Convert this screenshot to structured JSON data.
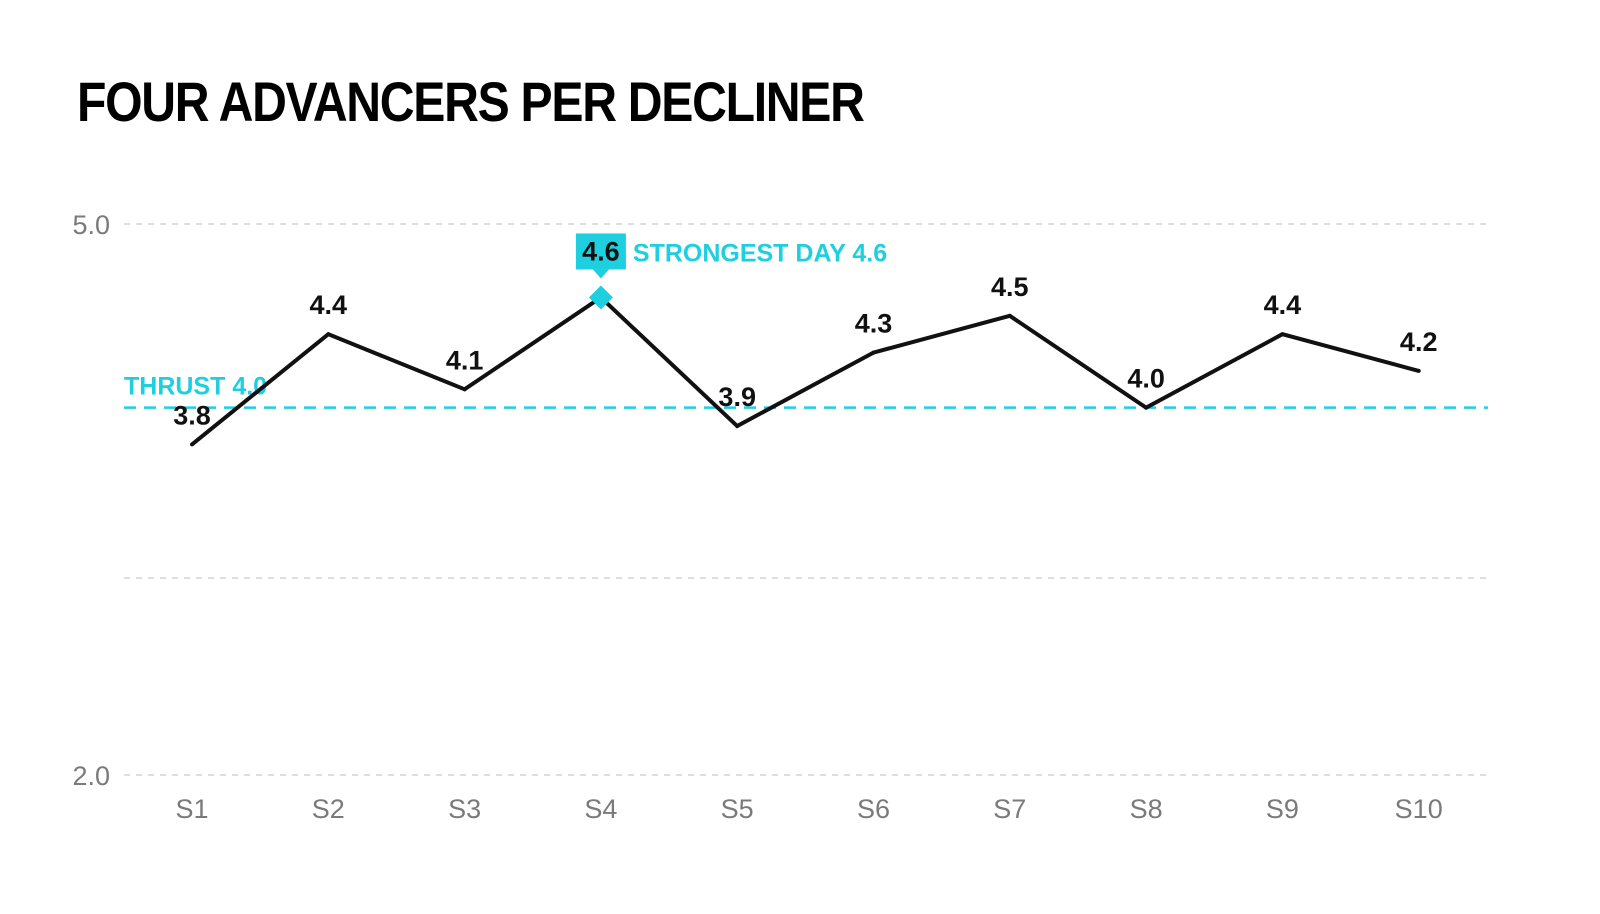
{
  "title": "FOUR ADVANCERS PER DECLINER",
  "colors": {
    "line": "#111111",
    "accent": "#1ecfdf",
    "grid": "#d4d4d4",
    "tick_text": "#7a7a7a"
  },
  "chart_data": {
    "type": "line",
    "title": "FOUR ADVANCERS PER DECLINER",
    "xlabel": "",
    "ylabel": "",
    "ylim": [
      2.0,
      5.0
    ],
    "y_ticks": [
      "5.0",
      "2.0"
    ],
    "grid": true,
    "categories": [
      "S1",
      "S2",
      "S3",
      "S4",
      "S5",
      "S6",
      "S7",
      "S8",
      "S9",
      "S10"
    ],
    "values": [
      3.8,
      4.4,
      4.1,
      4.6,
      3.9,
      4.3,
      4.5,
      4.0,
      4.4,
      4.2
    ],
    "data_labels": [
      "3.8",
      "4.4",
      "4.1",
      "4.6",
      "3.9",
      "4.3",
      "4.5",
      "4.0",
      "4.4",
      "4.2"
    ],
    "reference_line": {
      "value": 4.0,
      "label": "THRUST 4.0"
    },
    "highlight": {
      "category": "S4",
      "value_label": "4.6",
      "label": "STRONGEST DAY 4.6"
    }
  }
}
